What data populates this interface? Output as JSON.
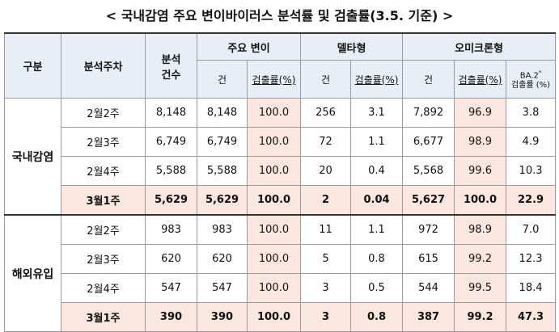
{
  "title": "< 국내감염 주요 변이바이러스 분석률 및 검출률(3.5. 기준) >",
  "headers": {
    "group": "구분",
    "week": "분석주차",
    "count_line1": "분석",
    "count_line2": "건수",
    "major": "주요 변이",
    "delta": "델타형",
    "omicron": "오미크론형",
    "cases": "건",
    "rate": "검출률(%)",
    "ba2_line1": "BA.2",
    "ba2_sup": "*",
    "ba2_line2": "검출률 (%)"
  },
  "groups": [
    {
      "name": "국내감염",
      "rows": [
        {
          "week": "2월2주",
          "analyzed": "8,148",
          "major_n": "8,148",
          "major_r": "100.0",
          "delta_n": "256",
          "delta_r": "3.1",
          "omi_n": "7,892",
          "omi_r": "96.9",
          "ba2": "3.8"
        },
        {
          "week": "2월3주",
          "analyzed": "6,749",
          "major_n": "6,749",
          "major_r": "100.0",
          "delta_n": "72",
          "delta_r": "1.1",
          "omi_n": "6,677",
          "omi_r": "98.9",
          "ba2": "4.9"
        },
        {
          "week": "2월4주",
          "analyzed": "5,588",
          "major_n": "5,588",
          "major_r": "100.0",
          "delta_n": "20",
          "delta_r": "0.4",
          "omi_n": "5,568",
          "omi_r": "99.6",
          "ba2": "10.3"
        },
        {
          "week": "3월1주",
          "analyzed": "5,629",
          "major_n": "5,629",
          "major_r": "100.0",
          "delta_n": "2",
          "delta_r": "0.04",
          "omi_n": "5,627",
          "omi_r": "100.0",
          "ba2": "22.9"
        }
      ]
    },
    {
      "name": "해외유입",
      "rows": [
        {
          "week": "2월2주",
          "analyzed": "983",
          "major_n": "983",
          "major_r": "100.0",
          "delta_n": "11",
          "delta_r": "1.1",
          "omi_n": "972",
          "omi_r": "98.9",
          "ba2": "7.0"
        },
        {
          "week": "2월3주",
          "analyzed": "620",
          "major_n": "620",
          "major_r": "100.0",
          "delta_n": "5",
          "delta_r": "0.8",
          "omi_n": "615",
          "omi_r": "99.2",
          "ba2": "12.3"
        },
        {
          "week": "2월4주",
          "analyzed": "547",
          "major_n": "547",
          "major_r": "100.0",
          "delta_n": "3",
          "delta_r": "0.5",
          "omi_n": "544",
          "omi_r": "99.5",
          "ba2": "18.4"
        },
        {
          "week": "3월1주",
          "analyzed": "390",
          "major_n": "390",
          "major_r": "100.0",
          "delta_n": "3",
          "delta_r": "0.8",
          "omi_n": "387",
          "omi_r": "99.2",
          "ba2": "47.3"
        }
      ]
    }
  ]
}
